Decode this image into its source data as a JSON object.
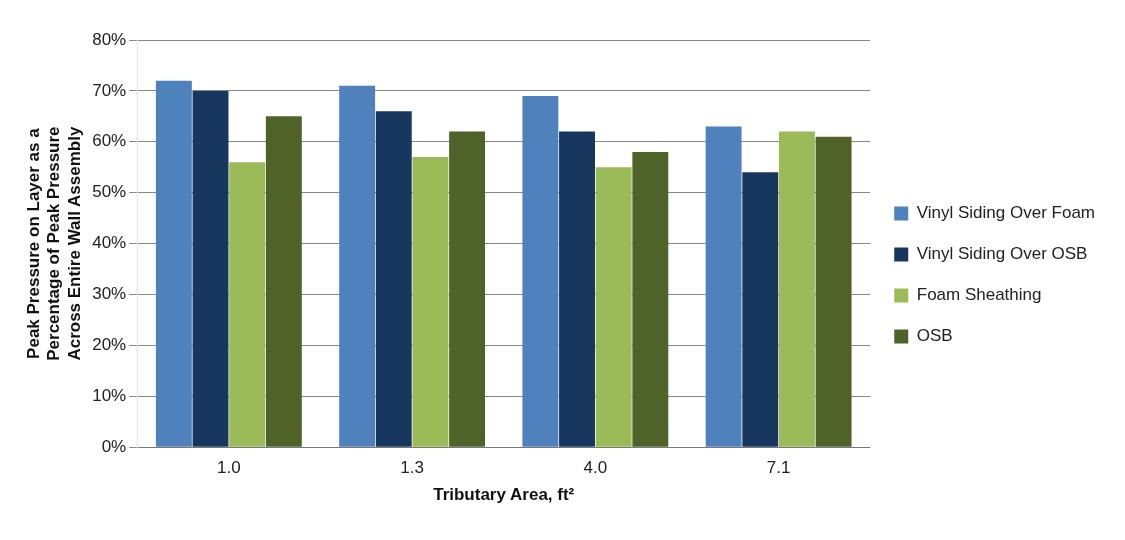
{
  "chart_data": {
    "type": "bar",
    "categories": [
      "1.0",
      "1.3",
      "4.0",
      "7.1"
    ],
    "xlabel": "Tributary Area, ft²",
    "ylabel": "Peak Pressure on Layer as a Percentage of Peak Pressure Across Entire Wall Assembly",
    "ylim": [
      0,
      80
    ],
    "yticks": [
      {
        "value": 0,
        "label": "0%"
      },
      {
        "value": 10,
        "label": "10%"
      },
      {
        "value": 20,
        "label": "20%"
      },
      {
        "value": 30,
        "label": "30%"
      },
      {
        "value": 40,
        "label": "40%"
      },
      {
        "value": 50,
        "label": "50%"
      },
      {
        "value": 60,
        "label": "60%"
      },
      {
        "value": 70,
        "label": "70%"
      },
      {
        "value": 80,
        "label": "80%"
      }
    ],
    "grid": "y",
    "legend": "right",
    "series": [
      {
        "name": "Vinyl Siding Over Foam",
        "color": "#4f81bd",
        "values": [
          72,
          71,
          69,
          63
        ]
      },
      {
        "name": "Vinyl Siding Over OSB",
        "color": "#17375e",
        "values": [
          70,
          66,
          62,
          54
        ]
      },
      {
        "name": "Foam Sheathing",
        "color": "#9bbb59",
        "values": [
          56,
          57,
          55,
          62
        ]
      },
      {
        "name": "OSB",
        "color": "#4f6228",
        "values": [
          65,
          62,
          58,
          61
        ]
      }
    ]
  }
}
